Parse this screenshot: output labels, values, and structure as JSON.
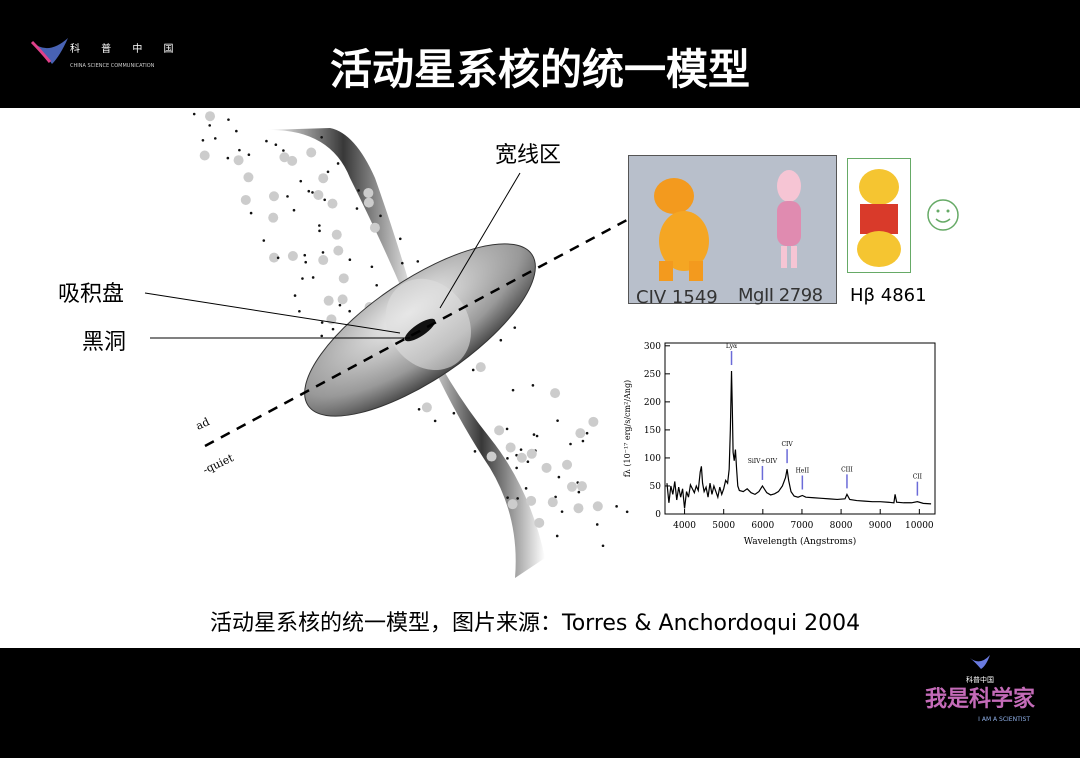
{
  "header": {
    "title": "活动星系核的统一模型",
    "logo_cn": "科 普 中 国",
    "logo_en": "CHINA SCIENCE COMMUNICATION"
  },
  "footer": {
    "logo_cn": "科普中国",
    "slogan": "我是科学家",
    "slogan_en": "I AM A SCIENTIST"
  },
  "diagram": {
    "labels": {
      "blr": "宽线区",
      "disk": "吸积盘",
      "bh": "黑洞",
      "loud": "ad",
      "quiet": "-quiet"
    }
  },
  "spectral_lines": {
    "civ": "CIV 1549",
    "mgii": "MgII 2798",
    "hbeta": "Hβ 4861"
  },
  "caption": "活动星系核的统一模型，图片来源：Torres & Anchordoqui 2004",
  "chart_data": {
    "type": "line",
    "xlabel": "Wavelength (Angstroms)",
    "ylabel": "fλ (10⁻¹⁷ erg/s/cm²/Ang)",
    "xlim": [
      3500,
      10400
    ],
    "ylim": [
      0,
      305
    ],
    "xticks": [
      4000,
      5000,
      6000,
      7000,
      8000,
      9000,
      10000
    ],
    "yticks": [
      0,
      50,
      100,
      150,
      200,
      250,
      300
    ],
    "grid": false,
    "x": [
      3550,
      3600,
      3650,
      3700,
      3750,
      3800,
      3850,
      3900,
      3950,
      4000,
      4050,
      4100,
      4150,
      4200,
      4250,
      4300,
      4350,
      4400,
      4430,
      4460,
      4500,
      4550,
      4600,
      4650,
      4700,
      4750,
      4800,
      4850,
      4900,
      4950,
      5000,
      5050,
      5100,
      5140,
      5170,
      5200,
      5220,
      5240,
      5270,
      5300,
      5330,
      5360,
      5400,
      5500,
      5600,
      5700,
      5800,
      5900,
      5990,
      6100,
      6200,
      6300,
      6400,
      6500,
      6580,
      6620,
      6660,
      6720,
      6800,
      6900,
      7010,
      7100,
      7300,
      7500,
      7700,
      7900,
      8100,
      8150,
      8220,
      8400,
      8600,
      8800,
      9000,
      9200,
      9350,
      9380,
      9420,
      9600,
      9800,
      9950,
      10100,
      10300
    ],
    "y": [
      55,
      20,
      50,
      35,
      58,
      25,
      48,
      30,
      45,
      10,
      40,
      30,
      52,
      45,
      38,
      50,
      42,
      75,
      85,
      55,
      40,
      48,
      30,
      55,
      35,
      50,
      40,
      30,
      48,
      35,
      45,
      60,
      55,
      80,
      150,
      255,
      190,
      110,
      95,
      115,
      80,
      50,
      42,
      40,
      45,
      38,
      35,
      40,
      50,
      38,
      34,
      36,
      40,
      50,
      65,
      80,
      60,
      40,
      32,
      30,
      33,
      30,
      29,
      28,
      27,
      26,
      27,
      35,
      26,
      24,
      23,
      22,
      22,
      21,
      20,
      35,
      21,
      20,
      20,
      22,
      19,
      18
    ]
  },
  "chart_lines": [
    {
      "label": "Lyα",
      "x": 5200
    },
    {
      "label": "SiIV+OIV",
      "x": 5990
    },
    {
      "label": "CIV",
      "x": 6620
    },
    {
      "label": "HeII",
      "x": 7010
    },
    {
      "label": "CIII",
      "x": 8150
    },
    {
      "label": "CII",
      "x": 9950
    }
  ],
  "colors": {
    "line_marker": "#6b6bd8"
  }
}
